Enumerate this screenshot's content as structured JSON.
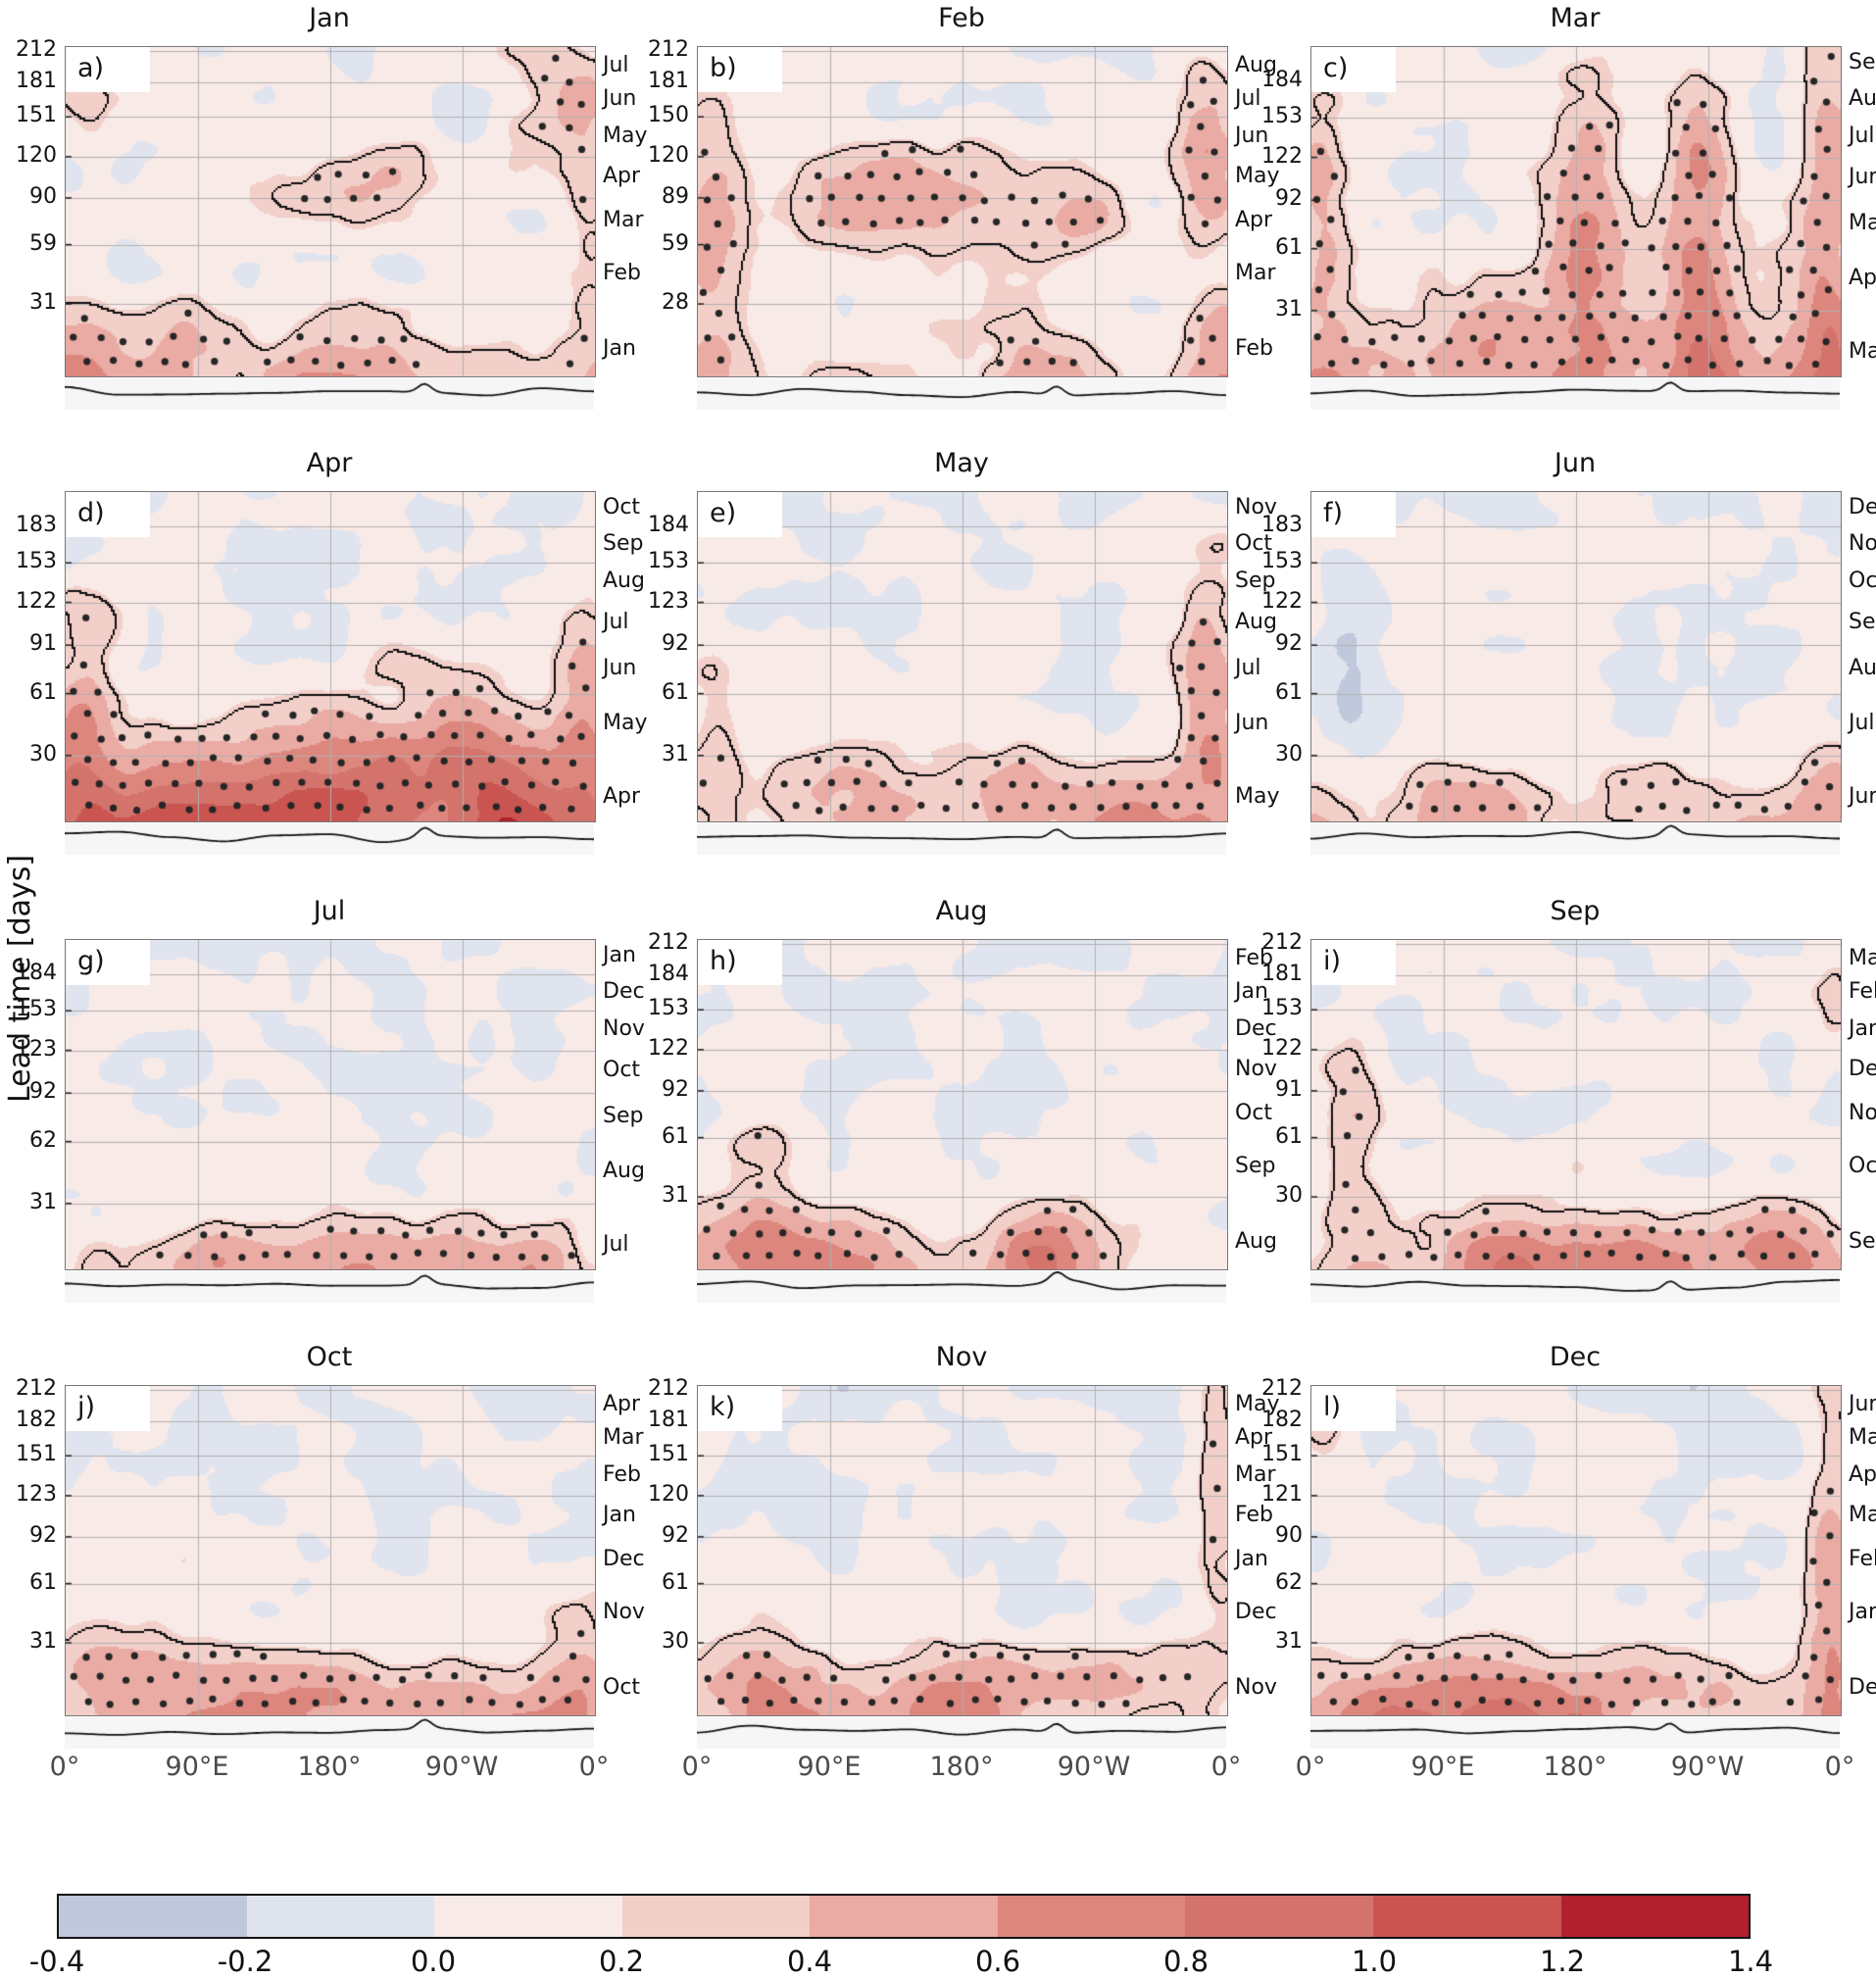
{
  "figure": {
    "ylabel": "Lead time [days]",
    "background": "#ffffff"
  },
  "xaxis": {
    "ticks": [
      "0°",
      "90°E",
      "180°",
      "90°W",
      "0°"
    ]
  },
  "colorbar": {
    "vmin": -0.4,
    "vmax": 1.4,
    "step": 0.2,
    "tick_labels": [
      "-0.4",
      "-0.2",
      "0.0",
      "0.2",
      "0.4",
      "0.6",
      "0.8",
      "1.0",
      "1.2",
      "1.4"
    ],
    "segment_colors": [
      "#c0c8dc",
      "#dfe4ef",
      "#f8eae7",
      "#f2cfc9",
      "#e9aba3",
      "#dd867e",
      "#d3736c",
      "#c95450",
      "#b1202e"
    ]
  },
  "chart_data": {
    "type": "heatmap",
    "title": "",
    "description": "Twelve filled-contour panels (one per start month, a-l) of skill versus longitude (x, 0°-360°) and lead time in days (y). Left axis: lead time in days at month boundaries; right axis: target month labels. Black contours with stippled dots mark regions of high values (> ~0.2). A thin coastline map strip sits under each panel. Shared discrete colorbar from -0.4 to 1.4 in steps of 0.2.",
    "x_domain_degrees": [
      0,
      360
    ],
    "grid": "gray gridlines at 90°E, 180°, 90°W and at each month-boundary lead time",
    "stippling": "dots inside black contour = significant/high skill region",
    "panels": [
      {
        "letter": "a)",
        "title": "Jan",
        "left_ticks": [
          212,
          181,
          151,
          120,
          90,
          59,
          31
        ],
        "right_labels": [
          "Jul",
          "Jun",
          "May",
          "Apr",
          "Mar",
          "Feb",
          "Jan"
        ],
        "render": {
          "cool": 0.1,
          "band_start": 0.62,
          "band_amp": 0.62,
          "hotspots": [
            [
              0.56,
              0.4,
              0.16,
              0.09,
              0.34
            ],
            [
              0.93,
              0.17,
              0.07,
              0.12,
              0.4
            ],
            [
              0.03,
              0.17,
              0.05,
              0.1,
              0.34
            ],
            [
              0.99,
              0.45,
              0.04,
              0.28,
              0.3
            ],
            [
              0.2,
              0.88,
              0.1,
              0.1,
              0.22
            ]
          ],
          "coolspots": []
        }
      },
      {
        "letter": "b)",
        "title": "Feb",
        "left_ticks": [
          212,
          181,
          150,
          120,
          89,
          59,
          28
        ],
        "right_labels": [
          "Aug",
          "Jul",
          "Jun",
          "May",
          "Apr",
          "Mar",
          "Feb"
        ],
        "render": {
          "cool": 0.1,
          "band_start": 0.62,
          "band_amp": 0.55,
          "hotspots": [
            [
              0.33,
              0.47,
              0.11,
              0.11,
              0.48
            ],
            [
              0.58,
              0.4,
              0.14,
              0.11,
              0.33
            ],
            [
              0.96,
              0.33,
              0.05,
              0.24,
              0.5
            ],
            [
              0.02,
              0.55,
              0.05,
              0.28,
              0.42
            ],
            [
              0.7,
              0.55,
              0.08,
              0.08,
              0.25
            ]
          ],
          "coolspots": []
        }
      },
      {
        "letter": "c)",
        "title": "Mar",
        "left_ticks": [
          184,
          153,
          122,
          92,
          61,
          31
        ],
        "right_labels": [
          "Sep",
          "Aug",
          "Jul",
          "Jun",
          "May",
          "Apr",
          "Mar"
        ],
        "render": {
          "cool": 0.13,
          "band_start": 0.6,
          "band_amp": 0.58,
          "hotspots": [
            [
              0.52,
              0.6,
              0.06,
              0.4,
              0.5
            ],
            [
              0.73,
              0.62,
              0.05,
              0.42,
              0.62
            ],
            [
              0.97,
              0.55,
              0.04,
              0.45,
              0.52
            ],
            [
              0.02,
              0.5,
              0.04,
              0.32,
              0.38
            ],
            [
              0.3,
              0.85,
              0.08,
              0.12,
              0.28
            ]
          ],
          "coolspots": []
        }
      },
      {
        "letter": "d)",
        "title": "Apr",
        "left_ticks": [
          183,
          153,
          122,
          91,
          61,
          30
        ],
        "right_labels": [
          "Oct",
          "Sep",
          "Aug",
          "Jul",
          "Jun",
          "May",
          "Apr"
        ],
        "render": {
          "cool": 0.1,
          "band_start": 0.58,
          "band_amp": 0.8,
          "hotspots": [
            [
              0.44,
              0.88,
              0.18,
              0.14,
              0.4
            ],
            [
              0.73,
              0.78,
              0.13,
              0.18,
              0.4
            ],
            [
              0.02,
              0.72,
              0.05,
              0.26,
              0.45
            ],
            [
              0.98,
              0.68,
              0.04,
              0.26,
              0.45
            ],
            [
              0.08,
              0.38,
              0.04,
              0.07,
              0.22
            ]
          ],
          "coolspots": []
        }
      },
      {
        "letter": "e)",
        "title": "May",
        "left_ticks": [
          184,
          153,
          123,
          92,
          61,
          31
        ],
        "right_labels": [
          "Nov",
          "Oct",
          "Sep",
          "Aug",
          "Jul",
          "Jun",
          "May"
        ],
        "render": {
          "cool": 0.12,
          "band_start": 0.66,
          "band_amp": 0.6,
          "hotspots": [
            [
              0.96,
              0.62,
              0.04,
              0.26,
              0.48
            ],
            [
              0.24,
              0.88,
              0.11,
              0.1,
              0.28
            ],
            [
              0.6,
              0.9,
              0.13,
              0.09,
              0.28
            ],
            [
              0.02,
              0.6,
              0.04,
              0.18,
              0.25
            ]
          ],
          "coolspots": []
        }
      },
      {
        "letter": "f)",
        "title": "Jun",
        "left_ticks": [
          183,
          153,
          122,
          92,
          61,
          30
        ],
        "right_labels": [
          "Dec",
          "Nov",
          "Oct",
          "Sep",
          "Aug",
          "Jul",
          "Jun"
        ],
        "render": {
          "cool": 0.14,
          "band_start": 0.7,
          "band_amp": 0.34,
          "hotspots": [
            [
              0.3,
              0.93,
              0.09,
              0.08,
              0.28
            ],
            [
              0.63,
              0.91,
              0.11,
              0.08,
              0.28
            ],
            [
              0.97,
              0.88,
              0.05,
              0.1,
              0.33
            ]
          ],
          "coolspots": [
            [
              0.07,
              0.5,
              0.04,
              0.22,
              0.28
            ]
          ]
        }
      },
      {
        "letter": "g)",
        "title": "Jul",
        "left_ticks": [
          184,
          153,
          123,
          92,
          62,
          31
        ],
        "right_labels": [
          "Jan",
          "Dec",
          "Nov",
          "Oct",
          "Sep",
          "Aug",
          "Jul"
        ],
        "render": {
          "cool": 0.13,
          "band_start": 0.72,
          "band_amp": 0.3,
          "hotspots": [
            [
              0.3,
              0.94,
              0.07,
              0.07,
              0.26
            ],
            [
              0.6,
              0.92,
              0.11,
              0.08,
              0.28
            ],
            [
              0.9,
              0.94,
              0.05,
              0.07,
              0.22
            ]
          ],
          "coolspots": []
        }
      },
      {
        "letter": "h)",
        "title": "Aug",
        "left_ticks": [
          212,
          184,
          153,
          122,
          92,
          61,
          31
        ],
        "right_labels": [
          "Feb",
          "Jan",
          "Dec",
          "Nov",
          "Oct",
          "Sep",
          "Aug"
        ],
        "render": {
          "cool": 0.12,
          "band_start": 0.68,
          "band_amp": 0.42,
          "hotspots": [
            [
              0.09,
              0.9,
              0.09,
              0.11,
              0.33
            ],
            [
              0.3,
              0.9,
              0.09,
              0.09,
              0.28
            ],
            [
              0.65,
              0.93,
              0.11,
              0.07,
              0.28
            ],
            [
              0.12,
              0.6,
              0.05,
              0.07,
              0.22
            ]
          ],
          "coolspots": []
        }
      },
      {
        "letter": "i)",
        "title": "Sep",
        "left_ticks": [
          212,
          181,
          153,
          122,
          91,
          61,
          30
        ],
        "right_labels": [
          "Mar",
          "Feb",
          "Jan",
          "Dec",
          "Nov",
          "Oct",
          "Sep"
        ],
        "render": {
          "cool": 0.11,
          "band_start": 0.66,
          "band_amp": 0.52,
          "hotspots": [
            [
              0.07,
              0.52,
              0.04,
              0.26,
              0.33
            ],
            [
              0.5,
              0.92,
              0.18,
              0.08,
              0.28
            ],
            [
              0.9,
              0.9,
              0.09,
              0.09,
              0.33
            ],
            [
              0.99,
              0.15,
              0.03,
              0.1,
              0.3
            ]
          ],
          "coolspots": []
        }
      },
      {
        "letter": "j)",
        "title": "Oct",
        "left_ticks": [
          212,
          182,
          151,
          123,
          92,
          61,
          31
        ],
        "right_labels": [
          "Apr",
          "Mar",
          "Feb",
          "Jan",
          "Dec",
          "Nov",
          "Oct"
        ],
        "render": {
          "cool": 0.15,
          "band_start": 0.68,
          "band_amp": 0.52,
          "hotspots": [
            [
              0.08,
              0.84,
              0.09,
              0.12,
              0.38
            ],
            [
              0.55,
              0.94,
              0.18,
              0.07,
              0.28
            ],
            [
              0.96,
              0.86,
              0.05,
              0.13,
              0.33
            ],
            [
              0.13,
              0.46,
              0.05,
              0.11,
              0.18
            ]
          ],
          "coolspots": []
        }
      },
      {
        "letter": "k)",
        "title": "Nov",
        "left_ticks": [
          212,
          181,
          151,
          120,
          92,
          61,
          30
        ],
        "right_labels": [
          "May",
          "Apr",
          "Mar",
          "Feb",
          "Jan",
          "Dec",
          "Nov"
        ],
        "render": {
          "cool": 0.15,
          "band_start": 0.68,
          "band_amp": 0.5,
          "hotspots": [
            [
              0.08,
              0.9,
              0.09,
              0.09,
              0.33
            ],
            [
              0.45,
              0.92,
              0.13,
              0.08,
              0.28
            ],
            [
              0.76,
              0.9,
              0.11,
              0.08,
              0.28
            ],
            [
              0.98,
              0.28,
              0.03,
              0.26,
              0.33
            ],
            [
              0.03,
              0.05,
              0.03,
              0.05,
              0.3
            ]
          ],
          "coolspots": []
        }
      },
      {
        "letter": "l)",
        "title": "Dec",
        "left_ticks": [
          212,
          182,
          151,
          121,
          90,
          62,
          31
        ],
        "right_labels": [
          "Jun",
          "May",
          "Apr",
          "Mar",
          "Feb",
          "Jan",
          "Dec"
        ],
        "render": {
          "cool": 0.14,
          "band_start": 0.66,
          "band_amp": 0.55,
          "hotspots": [
            [
              0.98,
              0.55,
              0.035,
              0.42,
              0.48
            ],
            [
              0.3,
              0.92,
              0.13,
              0.08,
              0.28
            ],
            [
              0.7,
              0.9,
              0.11,
              0.08,
              0.28
            ],
            [
              0.02,
              0.1,
              0.03,
              0.07,
              0.28
            ]
          ],
          "coolspots": []
        }
      }
    ]
  }
}
